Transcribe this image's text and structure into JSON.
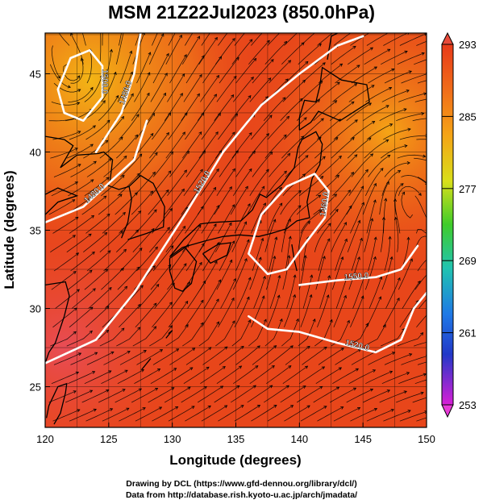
{
  "title": "MSM 21Z22Jul2023 (850.0hPa)",
  "x_axis": {
    "label": "Longitude (degrees)",
    "ticks": [
      "120",
      "125",
      "130",
      "135",
      "140",
      "145",
      "150"
    ],
    "range": [
      120,
      150
    ]
  },
  "y_axis": {
    "label": "Latitude  (degrees)",
    "ticks": [
      "25",
      "30",
      "35",
      "40",
      "45"
    ],
    "range": [
      22.4,
      47.6
    ]
  },
  "colorbar": {
    "ticks": [
      "293",
      "285",
      "277",
      "269",
      "261",
      "253"
    ],
    "range": [
      253,
      293
    ]
  },
  "contours": [
    {
      "label": "1520.0",
      "points": [
        [
          120,
          26.5
        ],
        [
          124,
          28
        ],
        [
          127,
          31
        ],
        [
          129,
          33.5
        ],
        [
          131,
          36
        ],
        [
          134,
          40
        ],
        [
          137,
          43
        ],
        [
          140,
          45
        ],
        [
          143,
          46.8
        ],
        [
          145,
          47.4
        ]
      ]
    },
    {
      "label": "1480.0",
      "points": [
        [
          120,
          35.5
        ],
        [
          123,
          36.5
        ],
        [
          125,
          38
        ],
        [
          127,
          39.5
        ],
        [
          128,
          42
        ]
      ]
    },
    {
      "label": "1480.0",
      "points": [
        [
          124,
          40
        ],
        [
          126,
          42.5
        ],
        [
          127,
          45
        ],
        [
          127.5,
          47.6
        ]
      ]
    },
    {
      "label": "1500.0",
      "points": [
        [
          121,
          44
        ],
        [
          122,
          46
        ],
        [
          123.5,
          46.5
        ],
        [
          124.5,
          45.5
        ],
        [
          124.5,
          43.5
        ],
        [
          123,
          42
        ],
        [
          121.5,
          42.5
        ],
        [
          121,
          44
        ]
      ]
    },
    {
      "label": "1460.0",
      "points": [
        [
          136,
          33.5
        ],
        [
          137,
          36
        ],
        [
          139,
          37.8
        ],
        [
          141.2,
          38.6
        ],
        [
          142.3,
          37.5
        ],
        [
          142,
          35.8
        ],
        [
          140.5,
          34.2
        ],
        [
          139,
          32.5
        ],
        [
          137.5,
          32.2
        ],
        [
          136,
          33.5
        ]
      ]
    },
    {
      "label": "1520.0",
      "points": [
        [
          136,
          29.5
        ],
        [
          137.5,
          28.7
        ],
        [
          140,
          28.5
        ],
        [
          143,
          27.8
        ],
        [
          146,
          27.2
        ],
        [
          148,
          28
        ],
        [
          149,
          30
        ],
        [
          150,
          31
        ]
      ]
    },
    {
      "label": "1550.0",
      "points": [
        [
          140,
          31.5
        ],
        [
          143,
          31.8
        ],
        [
          146,
          32
        ],
        [
          148,
          32.5
        ],
        [
          149.3,
          34
        ]
      ]
    }
  ],
  "colors": {
    "background_field": "#e8461a",
    "contour": "#ffffff",
    "streamline": "#000000",
    "coastline": "#000000"
  }
}
